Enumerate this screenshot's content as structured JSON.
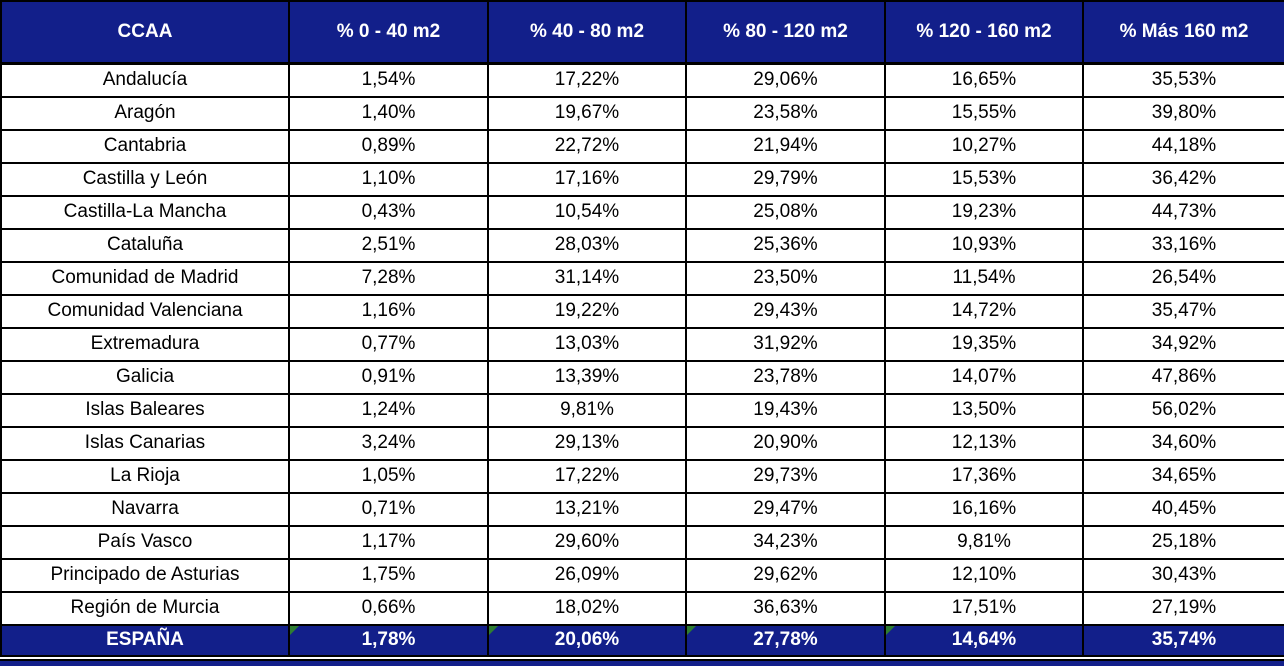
{
  "table": {
    "columns": [
      "CCAA",
      "% 0 - 40 m2",
      "% 40 - 80 m2",
      "% 80 - 120 m2",
      "% 120 - 160 m2",
      "% Más 160 m2"
    ],
    "rows": [
      {
        "ccaa": "Andalucía",
        "values": [
          "1,54%",
          "17,22%",
          "29,06%",
          "16,65%",
          "35,53%"
        ]
      },
      {
        "ccaa": "Aragón",
        "values": [
          "1,40%",
          "19,67%",
          "23,58%",
          "15,55%",
          "39,80%"
        ]
      },
      {
        "ccaa": "Cantabria",
        "values": [
          "0,89%",
          "22,72%",
          "21,94%",
          "10,27%",
          "44,18%"
        ]
      },
      {
        "ccaa": "Castilla y León",
        "values": [
          "1,10%",
          "17,16%",
          "29,79%",
          "15,53%",
          "36,42%"
        ]
      },
      {
        "ccaa": "Castilla-La Mancha",
        "values": [
          "0,43%",
          "10,54%",
          "25,08%",
          "19,23%",
          "44,73%"
        ]
      },
      {
        "ccaa": "Cataluña",
        "values": [
          "2,51%",
          "28,03%",
          "25,36%",
          "10,93%",
          "33,16%"
        ]
      },
      {
        "ccaa": "Comunidad de Madrid",
        "values": [
          "7,28%",
          "31,14%",
          "23,50%",
          "11,54%",
          "26,54%"
        ]
      },
      {
        "ccaa": "Comunidad Valenciana",
        "values": [
          "1,16%",
          "19,22%",
          "29,43%",
          "14,72%",
          "35,47%"
        ]
      },
      {
        "ccaa": "Extremadura",
        "values": [
          "0,77%",
          "13,03%",
          "31,92%",
          "19,35%",
          "34,92%"
        ]
      },
      {
        "ccaa": "Galicia",
        "values": [
          "0,91%",
          "13,39%",
          "23,78%",
          "14,07%",
          "47,86%"
        ]
      },
      {
        "ccaa": "Islas Baleares",
        "values": [
          "1,24%",
          "9,81%",
          "19,43%",
          "13,50%",
          "56,02%"
        ]
      },
      {
        "ccaa": "Islas Canarias",
        "values": [
          "3,24%",
          "29,13%",
          "20,90%",
          "12,13%",
          "34,60%"
        ]
      },
      {
        "ccaa": "La Rioja",
        "values": [
          "1,05%",
          "17,22%",
          "29,73%",
          "17,36%",
          "34,65%"
        ]
      },
      {
        "ccaa": "Navarra",
        "values": [
          "0,71%",
          "13,21%",
          "29,47%",
          "16,16%",
          "40,45%"
        ]
      },
      {
        "ccaa": "País Vasco",
        "values": [
          "1,17%",
          "29,60%",
          "34,23%",
          "9,81%",
          "25,18%"
        ]
      },
      {
        "ccaa": "Principado de Asturias",
        "values": [
          "1,75%",
          "26,09%",
          "29,62%",
          "12,10%",
          "30,43%"
        ]
      },
      {
        "ccaa": "Región de Murcia",
        "values": [
          "0,66%",
          "18,02%",
          "36,63%",
          "17,51%",
          "27,19%"
        ]
      }
    ],
    "total_row": {
      "ccaa": "ESPAÑA",
      "values": [
        "1,78%",
        "20,06%",
        "27,78%",
        "14,64%",
        "35,74%"
      ],
      "flagged_columns": [
        0,
        1,
        2,
        3
      ]
    }
  },
  "chart_data": {
    "type": "table",
    "title": "",
    "categories": [
      "Andalucía",
      "Aragón",
      "Cantabria",
      "Castilla y León",
      "Castilla-La Mancha",
      "Cataluña",
      "Comunidad de Madrid",
      "Comunidad Valenciana",
      "Extremadura",
      "Galicia",
      "Islas Baleares",
      "Islas Canarias",
      "La Rioja",
      "Navarra",
      "País Vasco",
      "Principado de Asturias",
      "Región de Murcia",
      "ESPAÑA"
    ],
    "series": [
      {
        "name": "% 0 - 40 m2",
        "values": [
          1.54,
          1.4,
          0.89,
          1.1,
          0.43,
          2.51,
          7.28,
          1.16,
          0.77,
          0.91,
          1.24,
          3.24,
          1.05,
          0.71,
          1.17,
          1.75,
          0.66,
          1.78
        ]
      },
      {
        "name": "% 40 - 80 m2",
        "values": [
          17.22,
          19.67,
          22.72,
          17.16,
          10.54,
          28.03,
          31.14,
          19.22,
          13.03,
          13.39,
          9.81,
          29.13,
          17.22,
          13.21,
          29.6,
          26.09,
          18.02,
          20.06
        ]
      },
      {
        "name": "% 80 - 120 m2",
        "values": [
          29.06,
          23.58,
          21.94,
          29.79,
          25.08,
          25.36,
          23.5,
          29.43,
          31.92,
          23.78,
          19.43,
          20.9,
          29.73,
          29.47,
          34.23,
          29.62,
          36.63,
          27.78
        ]
      },
      {
        "name": "% 120 - 160 m2",
        "values": [
          16.65,
          15.55,
          10.27,
          15.53,
          19.23,
          10.93,
          11.54,
          14.72,
          19.35,
          14.07,
          13.5,
          12.13,
          17.36,
          16.16,
          9.81,
          12.1,
          17.51,
          14.64
        ]
      },
      {
        "name": "% Más 160 m2",
        "values": [
          35.53,
          39.8,
          44.18,
          36.42,
          44.73,
          33.16,
          26.54,
          35.47,
          34.92,
          47.86,
          56.02,
          34.6,
          34.65,
          40.45,
          25.18,
          30.43,
          27.19,
          35.74
        ]
      }
    ],
    "value_unit": "%",
    "decimal_separator": ","
  },
  "colors": {
    "header_bg": "#121f8a",
    "header_text": "#ffffff",
    "body_text": "#000000",
    "border": "#000000",
    "flag_green": "#2e7d32"
  }
}
